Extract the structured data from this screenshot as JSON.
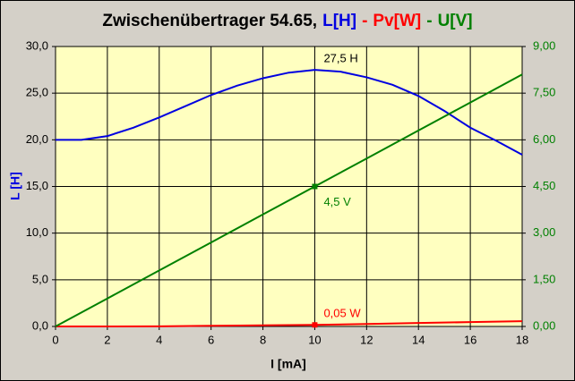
{
  "chart_data": {
    "type": "line",
    "title_parts": [
      {
        "text": "Zwischenübertrager 54.65,",
        "color": "#000000"
      },
      {
        "text": "L[H]",
        "color": "#0000e0"
      },
      {
        "text": "-",
        "color": "#ff0000"
      },
      {
        "text": "Pv[W]",
        "color": "#ff0000"
      },
      {
        "text": "-",
        "color": "#008000"
      },
      {
        "text": "U[V]",
        "color": "#008000"
      }
    ],
    "x_label": "I [mA]",
    "y_label": "L [H]",
    "y_label_color": "#0000e0",
    "xlim": [
      0,
      18
    ],
    "xticks": [
      0,
      2,
      4,
      6,
      8,
      10,
      12,
      14,
      16,
      18
    ],
    "ylim": [
      0,
      30
    ],
    "yticks": [
      {
        "value": 0,
        "label": "0,0"
      },
      {
        "value": 5,
        "label": "5,0"
      },
      {
        "value": 10,
        "label": "10,0"
      },
      {
        "value": 15,
        "label": "15,0"
      },
      {
        "value": 20,
        "label": "20,0"
      },
      {
        "value": 25,
        "label": "25,0"
      },
      {
        "value": 30,
        "label": "30,0"
      }
    ],
    "y2lim": [
      0,
      9
    ],
    "y2ticks": [
      {
        "value": 0,
        "label": "0,00"
      },
      {
        "value": 1.5,
        "label": "1,50"
      },
      {
        "value": 3,
        "label": "3,00"
      },
      {
        "value": 4.5,
        "label": "4,50"
      },
      {
        "value": 6,
        "label": "6,00"
      },
      {
        "value": 7.5,
        "label": "7,50"
      },
      {
        "value": 9,
        "label": "9,00"
      }
    ],
    "y2_color": "#008000",
    "grid": true,
    "series": [
      {
        "color": "#0000e0",
        "axis": "y",
        "x": [
          0,
          1,
          2,
          3,
          4,
          5,
          6,
          7,
          8,
          9,
          10,
          11,
          12,
          13,
          14,
          15,
          16,
          17,
          18
        ],
        "values": [
          20,
          20,
          20.4,
          21.3,
          22.4,
          23.6,
          24.8,
          25.8,
          26.6,
          27.2,
          27.5,
          27.3,
          26.7,
          25.9,
          24.7,
          23.1,
          21.3,
          19.9,
          18.4
        ]
      },
      {
        "color": "#ff0000",
        "axis": "y2",
        "x": [
          0,
          2,
          4,
          6,
          8,
          10,
          12,
          14,
          16,
          18
        ],
        "values": [
          0,
          0,
          0.005,
          0.02,
          0.035,
          0.05,
          0.08,
          0.11,
          0.14,
          0.17
        ]
      },
      {
        "color": "#008000",
        "axis": "y2",
        "x": [
          0,
          2,
          4,
          6,
          8,
          10,
          12,
          14,
          16,
          18
        ],
        "values": [
          0,
          0.9,
          1.8,
          2.7,
          3.6,
          4.5,
          5.4,
          6.3,
          7.2,
          8.1
        ]
      }
    ],
    "annotations": [
      {
        "text": "27,5 H",
        "x": 10,
        "y": 27.5,
        "axis": "y",
        "color": "#000000",
        "marker": false
      },
      {
        "text": "4,5 V",
        "x": 10,
        "y": 4.5,
        "axis": "y2",
        "color": "#008000",
        "marker": true
      },
      {
        "text": "0,05 W",
        "x": 10,
        "y": 0.05,
        "axis": "y2",
        "color": "#ff0000",
        "marker": true
      }
    ]
  }
}
